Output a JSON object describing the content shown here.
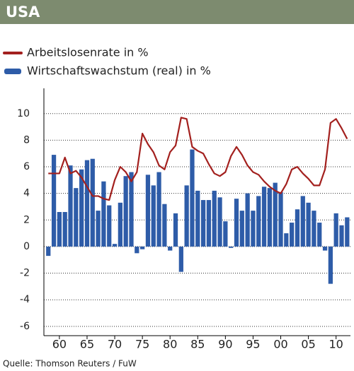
{
  "chart_data": {
    "type": "bar-line",
    "title": "USA",
    "source": "Quelle: Thomson Reuters / FuW",
    "x": [
      1958,
      1959,
      1960,
      1961,
      1962,
      1963,
      1964,
      1965,
      1966,
      1967,
      1968,
      1969,
      1970,
      1971,
      1972,
      1973,
      1974,
      1975,
      1976,
      1977,
      1978,
      1979,
      1980,
      1981,
      1982,
      1983,
      1984,
      1985,
      1986,
      1987,
      1988,
      1989,
      1990,
      1991,
      1992,
      1993,
      1994,
      1995,
      1996,
      1997,
      1998,
      1999,
      2000,
      2001,
      2002,
      2003,
      2004,
      2005,
      2006,
      2007,
      2008,
      2009,
      2010,
      2011,
      2012
    ],
    "series": [
      {
        "name": "Arbeitslosenrate in %",
        "kind": "line",
        "color": "#a3201e",
        "values": [
          5.5,
          5.5,
          5.5,
          6.7,
          5.5,
          5.7,
          5.2,
          4.5,
          3.8,
          3.8,
          3.6,
          3.5,
          5.0,
          6.0,
          5.6,
          4.9,
          5.6,
          8.5,
          7.7,
          7.1,
          6.1,
          5.8,
          7.1,
          7.6,
          9.7,
          9.6,
          7.5,
          7.2,
          7.0,
          6.2,
          5.5,
          5.3,
          5.6,
          6.8,
          7.5,
          6.9,
          6.1,
          5.6,
          5.4,
          4.9,
          4.5,
          4.2,
          4.0,
          4.7,
          5.8,
          6.0,
          5.5,
          5.1,
          4.6,
          4.6,
          5.8,
          9.3,
          9.6,
          8.9,
          8.1
        ]
      },
      {
        "name": "Wirtschaftswachstum (real) in %",
        "kind": "bar",
        "color": "#2e5ca8",
        "values": [
          -0.7,
          6.9,
          2.6,
          2.6,
          6.1,
          4.4,
          5.8,
          6.5,
          6.6,
          2.7,
          4.9,
          3.1,
          0.2,
          3.3,
          5.3,
          5.6,
          -0.5,
          -0.2,
          5.4,
          4.6,
          5.6,
          3.2,
          -0.3,
          2.5,
          -1.9,
          4.6,
          7.3,
          4.2,
          3.5,
          3.5,
          4.2,
          3.7,
          1.9,
          -0.1,
          3.6,
          2.7,
          4.0,
          2.7,
          3.8,
          4.5,
          4.4,
          4.8,
          4.1,
          1.0,
          1.8,
          2.8,
          3.8,
          3.3,
          2.7,
          1.8,
          -0.3,
          -2.8,
          2.5,
          1.6,
          2.2
        ]
      }
    ],
    "xlim": [
      1957.2,
      2012.6
    ],
    "xticks": [
      {
        "value": 1960,
        "label": "60"
      },
      {
        "value": 1965,
        "label": "65"
      },
      {
        "value": 1970,
        "label": "70"
      },
      {
        "value": 1975,
        "label": "75"
      },
      {
        "value": 1980,
        "label": "80"
      },
      {
        "value": 1985,
        "label": "85"
      },
      {
        "value": 1990,
        "label": "90"
      },
      {
        "value": 1995,
        "label": "95"
      },
      {
        "value": 2000,
        "label": "00"
      },
      {
        "value": 2005,
        "label": "05"
      },
      {
        "value": 2010,
        "label": "10"
      }
    ],
    "ylim": [
      -6.7,
      11.9
    ],
    "yticks": [
      -6,
      -4,
      -2,
      0,
      2,
      4,
      6,
      8,
      10
    ],
    "grid": true
  }
}
